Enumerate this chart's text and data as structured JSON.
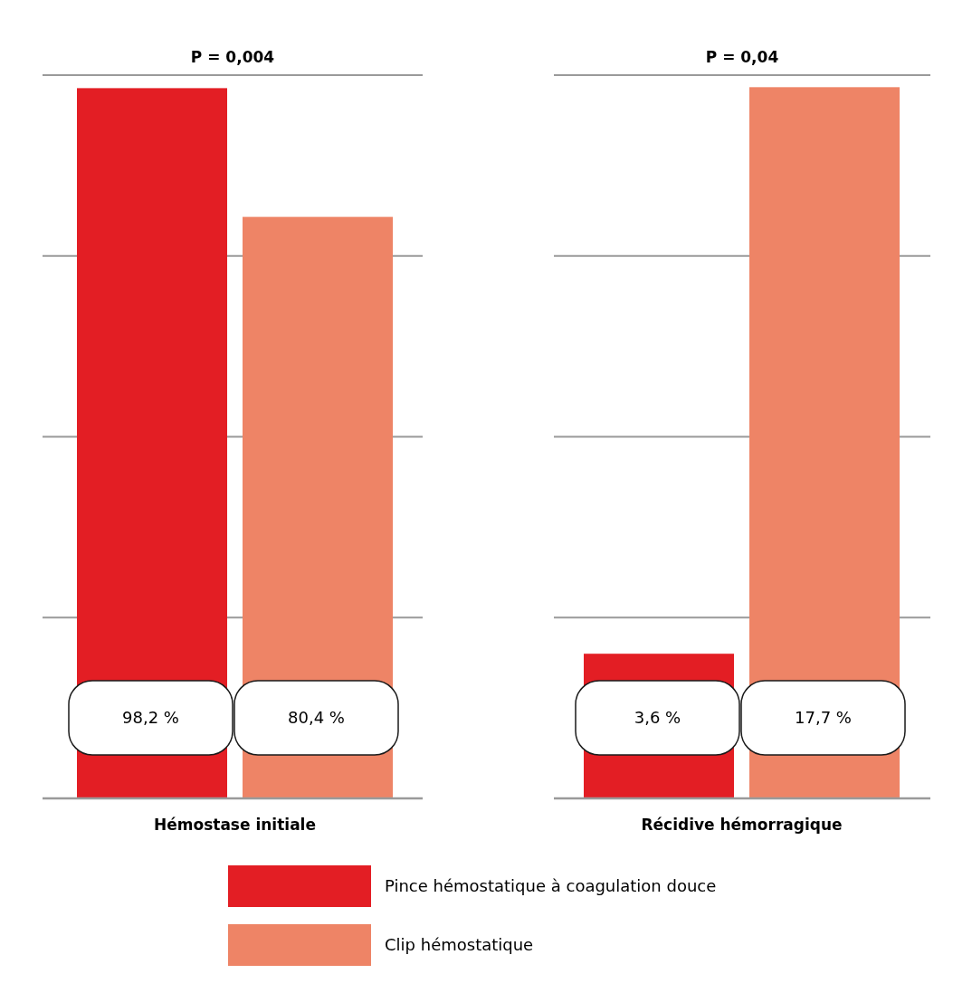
{
  "chart_data": [
    {
      "type": "bar",
      "title": "P = 0,004",
      "xlabel": "Hémostase initiale",
      "categories": [
        null
      ],
      "series": [
        {
          "name": "Pince hémostatique à coagulation douce",
          "color": "#e31e24",
          "values": [
            98.2
          ],
          "value_labels": [
            "98,2 %"
          ]
        },
        {
          "name": "Clip hémostatique",
          "color": "#ee8466",
          "values": [
            80.4
          ],
          "value_labels": [
            "80,4 %"
          ]
        }
      ],
      "ylim": [
        0,
        100
      ],
      "yticks": [
        {
          "value": 0,
          "label": null
        },
        {
          "value": 25,
          "label": null
        },
        {
          "value": 50,
          "label": null
        },
        {
          "value": 75,
          "label": null
        },
        {
          "value": 100,
          "label": null
        }
      ],
      "grid": "y",
      "legend": "bottom"
    },
    {
      "type": "bar",
      "title": "P = 0,04",
      "xlabel": "Récidive hémorragique",
      "categories": [
        null
      ],
      "series": [
        {
          "color": "#e31e24",
          "values": [
            3.6
          ],
          "value_labels": [
            "3,6 %"
          ]
        },
        {
          "color": "#ee8466",
          "values": [
            17.7
          ],
          "value_labels": [
            "17,7 %"
          ]
        }
      ],
      "ylim": [
        0,
        18
      ],
      "yticks": [
        {
          "value": 0,
          "label": null
        },
        {
          "value": 4.5,
          "label": null
        },
        {
          "value": 9,
          "label": null
        },
        {
          "value": 13.5,
          "label": null
        },
        {
          "value": 18,
          "label": null
        }
      ],
      "grid": "y"
    }
  ]
}
